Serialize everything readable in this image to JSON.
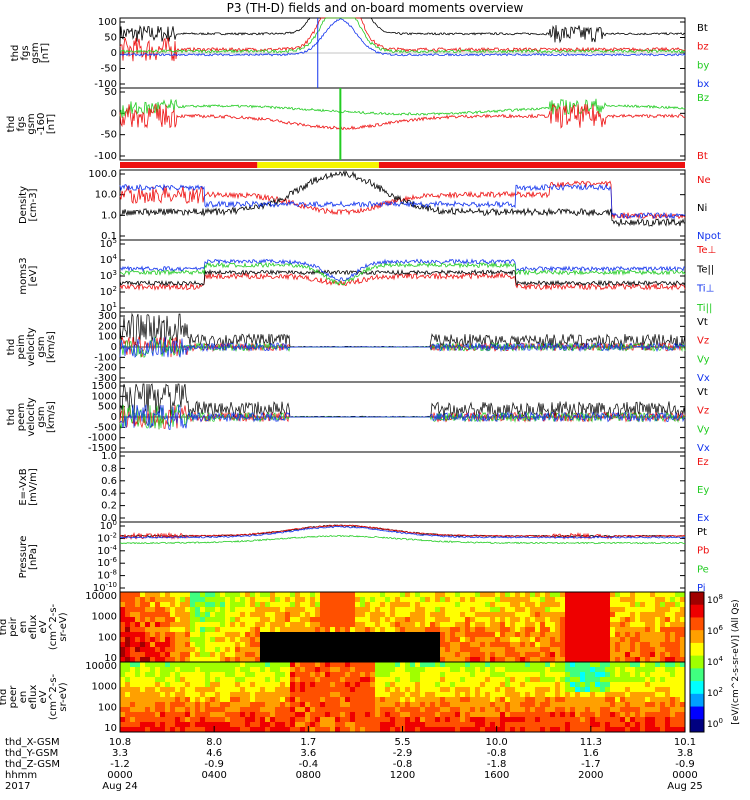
{
  "title": "P3 (TH-D) fields and on-board moments overview",
  "colors": {
    "black": "#000000",
    "red": "#ee1111",
    "green": "#22cc22",
    "blue": "#1133ee",
    "yellow": "#f5f500"
  },
  "chart_data": [
    {
      "type": "line",
      "ylabel": [
        "thd",
        "fgs",
        "gsm",
        "[nT]"
      ],
      "yticks": [
        "100",
        "50",
        "0",
        "-50",
        "-100"
      ],
      "ylim": [
        -100,
        100
      ],
      "series": [
        {
          "name": "Bt",
          "color": "black"
        },
        {
          "name": "bz",
          "color": "red"
        },
        {
          "name": "by",
          "color": "green"
        },
        {
          "name": "bx",
          "color": "blue"
        }
      ]
    },
    {
      "type": "line",
      "ylabel": [
        "thd",
        "fgs",
        "gsm",
        "-160",
        "[nT]"
      ],
      "yticks": [
        "50",
        "0",
        "-50",
        "-100"
      ],
      "ylim": [
        -120,
        60
      ],
      "series": [
        {
          "name": "Bz",
          "color": "green"
        },
        {
          "name": "Bt",
          "color": "red"
        }
      ]
    },
    {
      "type": "bar",
      "name": "mode bar",
      "segments": [
        {
          "from": "0000",
          "to": "0550",
          "color": "red"
        },
        {
          "from": "0550",
          "to": "1100",
          "color": "yellow"
        },
        {
          "from": "1100",
          "to": "2400",
          "color": "red"
        }
      ]
    },
    {
      "type": "line",
      "ylabel": [
        "Density",
        "[cm-3]"
      ],
      "yticks": [
        "100.0",
        "10.0",
        "1.0",
        "0.1"
      ],
      "scale": "log",
      "ylim": [
        0.1,
        100
      ],
      "series": [
        {
          "name": "Ne",
          "color": "red"
        },
        {
          "name": "Ni",
          "color": "black"
        },
        {
          "name": "Npot",
          "color": "blue"
        }
      ]
    },
    {
      "type": "line",
      "ylabel": [
        "moms3",
        "[eV]"
      ],
      "yticks": [
        "10^5",
        "10^4",
        "10^3",
        "10^2",
        "10^1"
      ],
      "scale": "log",
      "series": [
        {
          "name": "Te⊥",
          "color": "red"
        },
        {
          "name": "Te||",
          "color": "black"
        },
        {
          "name": "Ti⊥",
          "color": "blue"
        },
        {
          "name": "Ti||",
          "color": "green"
        }
      ]
    },
    {
      "type": "line",
      "ylabel": [
        "thd",
        "peim",
        "velocity",
        "gsm",
        "[km/s]"
      ],
      "yticks": [
        "300",
        "200",
        "100",
        "0",
        "-100",
        "-200",
        "-300"
      ],
      "ylim": [
        -300,
        300
      ],
      "series": [
        {
          "name": "Vt",
          "color": "black"
        },
        {
          "name": "Vz",
          "color": "red"
        },
        {
          "name": "Vy",
          "color": "green"
        },
        {
          "name": "Vx",
          "color": "blue"
        }
      ]
    },
    {
      "type": "line",
      "ylabel": [
        "thd",
        "peem",
        "velocity",
        "gsm",
        "[km/s]"
      ],
      "yticks": [
        "1500",
        "1000",
        "500",
        "0",
        "-500",
        "-1000",
        "-1500"
      ],
      "ylim": [
        -1500,
        1500
      ],
      "series": [
        {
          "name": "Vt",
          "color": "black"
        },
        {
          "name": "Vz",
          "color": "red"
        },
        {
          "name": "Vy",
          "color": "green"
        },
        {
          "name": "Vx",
          "color": "blue"
        }
      ]
    },
    {
      "type": "line",
      "ylabel": [
        "E=-VxB",
        "[mV/m]"
      ],
      "yticks": [
        "1.0",
        "0.8",
        "0.6",
        "0.4",
        "0.2",
        "0.0"
      ],
      "ylim": [
        0,
        1
      ],
      "series": [
        {
          "name": "Ez",
          "color": "red"
        },
        {
          "name": "Ey",
          "color": "green"
        },
        {
          "name": "Ex",
          "color": "blue"
        }
      ]
    },
    {
      "type": "line",
      "ylabel": [
        "Pressure",
        "[nPa]"
      ],
      "yticks": [
        "10^0",
        "10^-2",
        "10^-4",
        "10^-6",
        "10^-8",
        "10^-10"
      ],
      "scale": "log",
      "series": [
        {
          "name": "Pt",
          "color": "black"
        },
        {
          "name": "Pb",
          "color": "red"
        },
        {
          "name": "Pe",
          "color": "green"
        },
        {
          "name": "Pi",
          "color": "blue"
        }
      ]
    },
    {
      "type": "heatmap",
      "ylabel": [
        "thd",
        "peir",
        "en",
        "eflux",
        "eV",
        "(cm^2-s-",
        "sr-eV)"
      ],
      "yticks": [
        "10000",
        "1000",
        "100",
        "10"
      ]
    },
    {
      "type": "heatmap",
      "ylabel": [
        "thd",
        "peer",
        "en",
        "eflux",
        "eV",
        "(cm^2-s-",
        "sr-eV)"
      ],
      "yticks": [
        "10000",
        "1000",
        "100",
        "10"
      ]
    }
  ],
  "colorbar": {
    "label": "[eV/(cm^2-s-sr-eV)] (All Qs)",
    "ticks": [
      "10^8",
      "10^6",
      "10^4",
      "10^2",
      "10^0"
    ]
  },
  "xaxis": {
    "row_labels": [
      "thd_X-GSM",
      "thd_Y-GSM",
      "thd_Z-GSM",
      "hhmm",
      "2017"
    ],
    "ticks": [
      {
        "vals": [
          "10.8",
          "3.3",
          "-1.2",
          "0000",
          "Aug 24"
        ]
      },
      {
        "vals": [
          "8.0",
          "4.6",
          "-0.9",
          "0400",
          ""
        ]
      },
      {
        "vals": [
          "1.7",
          "3.6",
          "-0.4",
          "0800",
          ""
        ]
      },
      {
        "vals": [
          "5.5",
          "-2.9",
          "-0.8",
          "1200",
          ""
        ]
      },
      {
        "vals": [
          "10.0",
          "-0.8",
          "-1.8",
          "1600",
          ""
        ]
      },
      {
        "vals": [
          "11.3",
          "1.6",
          "-1.7",
          "2000",
          ""
        ]
      },
      {
        "vals": [
          "10.1",
          "3.8",
          "-0.9",
          "0000",
          "Aug 25"
        ]
      }
    ]
  }
}
